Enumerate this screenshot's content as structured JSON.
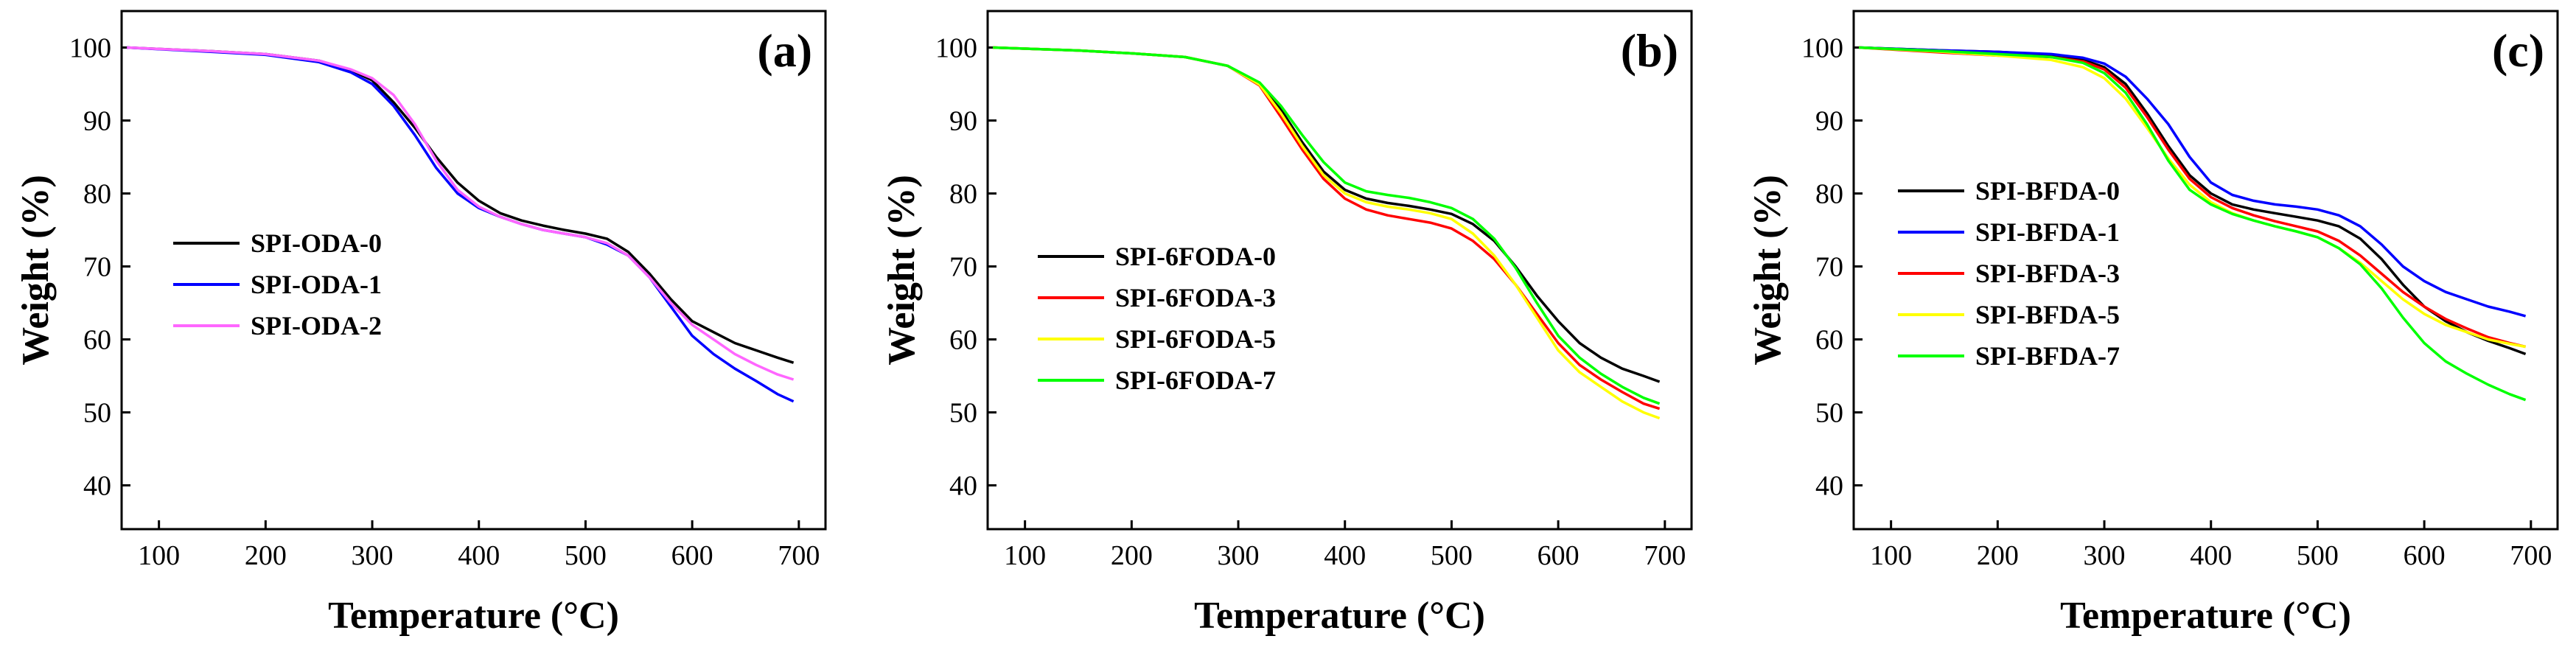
{
  "chart_data": [
    {
      "type": "line",
      "panel_label": "(a)",
      "xlabel": "Temperature (°C)",
      "ylabel": "Weight (%)",
      "xlim": [
        65,
        725
      ],
      "ylim": [
        34,
        105
      ],
      "xticks": [
        100,
        200,
        300,
        400,
        500,
        600,
        700
      ],
      "yticks": [
        40,
        50,
        60,
        70,
        80,
        90,
        100
      ],
      "grid": false,
      "legend_position": "center-left",
      "series": [
        {
          "name": "SPI-ODA-0",
          "color": "#000000",
          "x": [
            70,
            150,
            200,
            250,
            280,
            300,
            320,
            340,
            360,
            380,
            400,
            420,
            440,
            460,
            480,
            500,
            520,
            540,
            560,
            580,
            600,
            620,
            640,
            660,
            680,
            695
          ],
          "y": [
            100,
            99.5,
            99.1,
            98.2,
            96.9,
            95.5,
            92.5,
            89.0,
            85.0,
            81.5,
            79.0,
            77.3,
            76.3,
            75.6,
            75.0,
            74.5,
            73.8,
            72.0,
            69.0,
            65.5,
            62.5,
            61.0,
            59.5,
            58.5,
            57.5,
            56.8
          ]
        },
        {
          "name": "SPI-ODA-1",
          "color": "#0000ff",
          "x": [
            70,
            150,
            200,
            250,
            280,
            300,
            320,
            340,
            360,
            380,
            400,
            420,
            440,
            460,
            480,
            500,
            520,
            540,
            560,
            580,
            600,
            620,
            640,
            660,
            680,
            695
          ],
          "y": [
            100,
            99.4,
            99.0,
            98.0,
            96.6,
            95.0,
            92.0,
            88.0,
            83.5,
            80.0,
            78.0,
            76.8,
            75.8,
            75.0,
            74.5,
            74.0,
            73.0,
            71.5,
            68.5,
            64.5,
            60.5,
            58.0,
            56.0,
            54.3,
            52.5,
            51.5
          ]
        },
        {
          "name": "SPI-ODA-2",
          "color": "#ff66ff",
          "x": [
            70,
            150,
            200,
            250,
            280,
            300,
            320,
            340,
            360,
            380,
            400,
            420,
            440,
            460,
            480,
            500,
            520,
            540,
            560,
            580,
            600,
            620,
            640,
            660,
            680,
            695
          ],
          "y": [
            100,
            99.5,
            99.1,
            98.2,
            97.0,
            95.8,
            93.5,
            89.5,
            84.5,
            80.5,
            78.2,
            76.8,
            75.8,
            75.0,
            74.5,
            74.0,
            73.2,
            71.5,
            68.5,
            65.0,
            62.0,
            60.0,
            58.0,
            56.5,
            55.2,
            54.5
          ]
        }
      ]
    },
    {
      "type": "line",
      "panel_label": "(b)",
      "xlabel": "Temperature (°C)",
      "ylabel": "Weight (%)",
      "xlim": [
        65,
        725
      ],
      "ylim": [
        34,
        105
      ],
      "xticks": [
        100,
        200,
        300,
        400,
        500,
        600,
        700
      ],
      "yticks": [
        40,
        50,
        60,
        70,
        80,
        90,
        100
      ],
      "grid": false,
      "legend_position": "center-left",
      "series": [
        {
          "name": "SPI-6FODA-0",
          "color": "#000000",
          "x": [
            70,
            150,
            200,
            250,
            290,
            320,
            340,
            360,
            380,
            400,
            420,
            440,
            460,
            480,
            500,
            520,
            540,
            560,
            580,
            600,
            620,
            640,
            660,
            680,
            695
          ],
          "y": [
            100,
            99.6,
            99.2,
            98.7,
            97.5,
            95.0,
            91.5,
            87.0,
            83.0,
            80.5,
            79.3,
            78.7,
            78.3,
            77.8,
            77.2,
            75.8,
            73.5,
            70.0,
            66.0,
            62.5,
            59.5,
            57.5,
            56.0,
            55.0,
            54.2
          ]
        },
        {
          "name": "SPI-6FODA-3",
          "color": "#ff0000",
          "x": [
            70,
            150,
            200,
            250,
            290,
            320,
            340,
            360,
            380,
            400,
            420,
            440,
            460,
            480,
            500,
            520,
            540,
            560,
            580,
            600,
            620,
            640,
            660,
            680,
            695
          ],
          "y": [
            100,
            99.6,
            99.2,
            98.7,
            97.5,
            94.8,
            90.5,
            86.0,
            82.0,
            79.3,
            77.8,
            77.0,
            76.5,
            76.0,
            75.2,
            73.5,
            71.0,
            67.5,
            63.5,
            59.5,
            56.5,
            54.5,
            52.8,
            51.2,
            50.5
          ]
        },
        {
          "name": "SPI-6FODA-5",
          "color": "#ffff00",
          "x": [
            70,
            150,
            200,
            250,
            290,
            320,
            340,
            360,
            380,
            400,
            420,
            440,
            460,
            480,
            500,
            520,
            540,
            560,
            580,
            600,
            620,
            640,
            660,
            680,
            695
          ],
          "y": [
            100,
            99.6,
            99.2,
            98.7,
            97.5,
            94.9,
            91.0,
            86.5,
            82.5,
            80.0,
            78.8,
            78.2,
            77.8,
            77.3,
            76.5,
            74.5,
            71.5,
            67.5,
            63.0,
            58.5,
            55.5,
            53.5,
            51.5,
            50.0,
            49.2
          ]
        },
        {
          "name": "SPI-6FODA-7",
          "color": "#00ff00",
          "x": [
            70,
            150,
            200,
            250,
            290,
            320,
            340,
            360,
            380,
            400,
            420,
            440,
            460,
            480,
            500,
            520,
            540,
            560,
            580,
            600,
            620,
            640,
            660,
            680,
            695
          ],
          "y": [
            100,
            99.6,
            99.2,
            98.7,
            97.5,
            95.2,
            92.0,
            88.0,
            84.3,
            81.5,
            80.3,
            79.8,
            79.4,
            78.8,
            78.0,
            76.5,
            73.8,
            69.8,
            65.0,
            60.5,
            57.5,
            55.3,
            53.5,
            52.0,
            51.2
          ]
        }
      ]
    },
    {
      "type": "line",
      "panel_label": "(c)",
      "xlabel": "Temperature (°C)",
      "ylabel": "Weight (%)",
      "xlim": [
        65,
        725
      ],
      "ylim": [
        34,
        105
      ],
      "xticks": [
        100,
        200,
        300,
        400,
        500,
        600,
        700
      ],
      "yticks": [
        40,
        50,
        60,
        70,
        80,
        90,
        100
      ],
      "grid": false,
      "legend_position": "center-left",
      "series": [
        {
          "name": "SPI-BFDA-0",
          "color": "#000000",
          "x": [
            70,
            150,
            200,
            250,
            280,
            300,
            320,
            340,
            360,
            380,
            400,
            420,
            440,
            460,
            480,
            500,
            520,
            540,
            560,
            580,
            600,
            620,
            640,
            660,
            680,
            695
          ],
          "y": [
            100,
            99.6,
            99.4,
            99.0,
            98.3,
            97.3,
            95.0,
            91.0,
            86.5,
            82.5,
            80.0,
            78.5,
            77.8,
            77.3,
            76.8,
            76.3,
            75.5,
            73.8,
            71.0,
            67.5,
            64.5,
            62.5,
            61.0,
            59.8,
            58.8,
            58.0
          ]
        },
        {
          "name": "SPI-BFDA-1",
          "color": "#0000ff",
          "x": [
            70,
            150,
            200,
            250,
            280,
            300,
            320,
            340,
            360,
            380,
            400,
            420,
            440,
            460,
            480,
            500,
            520,
            540,
            560,
            580,
            600,
            620,
            640,
            660,
            680,
            695
          ],
          "y": [
            100,
            99.6,
            99.4,
            99.1,
            98.6,
            97.8,
            96.0,
            93.0,
            89.5,
            85.0,
            81.5,
            79.8,
            79.0,
            78.5,
            78.2,
            77.8,
            77.0,
            75.5,
            73.0,
            70.0,
            68.0,
            66.5,
            65.5,
            64.5,
            63.8,
            63.2
          ]
        },
        {
          "name": "SPI-BFDA-3",
          "color": "#ff0000",
          "x": [
            70,
            150,
            200,
            250,
            280,
            300,
            320,
            340,
            360,
            380,
            400,
            420,
            440,
            460,
            480,
            500,
            520,
            540,
            560,
            580,
            600,
            620,
            640,
            660,
            680,
            695
          ],
          "y": [
            100,
            99.3,
            98.9,
            98.7,
            98.1,
            97.0,
            94.5,
            90.5,
            86.0,
            82.0,
            79.5,
            78.0,
            77.0,
            76.2,
            75.5,
            74.8,
            73.5,
            71.5,
            69.0,
            66.5,
            64.5,
            62.8,
            61.5,
            60.3,
            59.5,
            59.0
          ]
        },
        {
          "name": "SPI-BFDA-5",
          "color": "#ffff00",
          "x": [
            70,
            150,
            200,
            250,
            280,
            300,
            320,
            340,
            360,
            380,
            400,
            420,
            440,
            460,
            480,
            500,
            520,
            540,
            560,
            580,
            600,
            620,
            640,
            660,
            680,
            695
          ],
          "y": [
            100,
            99.4,
            98.9,
            98.3,
            97.3,
            95.8,
            93.0,
            89.0,
            84.8,
            81.2,
            78.8,
            77.3,
            76.3,
            75.5,
            74.8,
            74.0,
            72.5,
            70.5,
            68.0,
            65.5,
            63.5,
            62.0,
            61.0,
            60.0,
            59.4,
            59.0
          ]
        },
        {
          "name": "SPI-BFDA-7",
          "color": "#00ff00",
          "x": [
            70,
            150,
            200,
            250,
            280,
            300,
            320,
            340,
            360,
            380,
            400,
            420,
            440,
            460,
            480,
            500,
            520,
            540,
            560,
            580,
            600,
            620,
            640,
            660,
            680,
            695
          ],
          "y": [
            100,
            99.5,
            99.1,
            98.7,
            97.9,
            96.5,
            93.8,
            89.5,
            84.5,
            80.5,
            78.5,
            77.2,
            76.3,
            75.5,
            74.8,
            74.0,
            72.5,
            70.3,
            67.0,
            63.0,
            59.5,
            57.0,
            55.3,
            53.8,
            52.5,
            51.7
          ]
        }
      ]
    }
  ]
}
